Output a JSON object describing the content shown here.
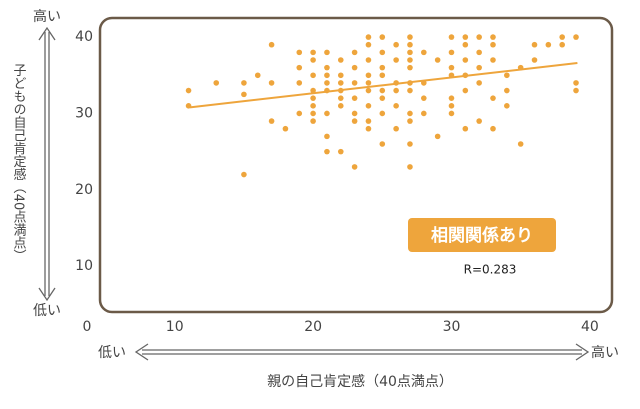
{
  "chart_data": {
    "type": "scatter",
    "y_label": "子どもの自己肯定感（40点満点）",
    "x_label": "親の自己肯定感（40点満点）",
    "y_high": "高い",
    "y_low": "低い",
    "x_low": "低い",
    "x_high": "高い",
    "origin_label": "0",
    "badge": "相関関係あり",
    "annotation": "R=0.283",
    "color": "#eea53c",
    "trend_color": "#eea53c",
    "xlim": [
      4.6,
      41.6
    ],
    "ylim": [
      4,
      42.5
    ],
    "xticks": [
      10,
      20,
      30,
      40
    ],
    "yticks": [
      10,
      20,
      30,
      40
    ],
    "trend": {
      "x": [
        11.1,
        39.1
      ],
      "y": [
        30.8,
        36.6
      ]
    },
    "x": [
      11,
      11,
      13,
      15,
      15,
      15,
      16,
      17,
      17,
      17,
      18,
      19,
      19,
      19,
      19,
      20,
      20,
      20,
      20,
      20,
      20,
      20,
      20,
      21,
      21,
      21,
      21,
      21,
      21,
      21,
      21,
      22,
      22,
      22,
      22,
      22,
      22,
      22,
      23,
      23,
      23,
      23,
      23,
      23,
      23,
      24,
      24,
      24,
      24,
      24,
      24,
      24,
      24,
      24,
      25,
      25,
      25,
      25,
      25,
      25,
      25,
      25,
      26,
      26,
      26,
      26,
      26,
      26,
      27,
      27,
      27,
      27,
      27,
      27,
      27,
      27,
      27,
      27,
      27,
      28,
      28,
      28,
      28,
      29,
      29,
      30,
      30,
      30,
      30,
      30,
      30,
      30,
      31,
      31,
      31,
      31,
      31,
      31,
      32,
      32,
      32,
      32,
      32,
      33,
      33,
      33,
      33,
      33,
      34,
      34,
      34,
      35,
      35,
      36,
      36,
      37,
      38,
      38,
      39,
      39,
      39
    ],
    "y": [
      33,
      31,
      34,
      22,
      32.5,
      34,
      35,
      39,
      34,
      29,
      28,
      38,
      36,
      34,
      30,
      38,
      37,
      35,
      33,
      32,
      31,
      30,
      29,
      38,
      36,
      35,
      34,
      33,
      30,
      25,
      27,
      37,
      35,
      34,
      33,
      32,
      31,
      25,
      38,
      36,
      34,
      32,
      30,
      29,
      23,
      40,
      39,
      37,
      35,
      34,
      33,
      31,
      29,
      28,
      40,
      38,
      36,
      35,
      33,
      32,
      30,
      26,
      39,
      37,
      34,
      33,
      31,
      28,
      40,
      39,
      38,
      37,
      36,
      34,
      33,
      30,
      29,
      26,
      23,
      38,
      34,
      32,
      30,
      37,
      27,
      40,
      38,
      36,
      35,
      32,
      31,
      30,
      40,
      39,
      37,
      35,
      33,
      28,
      40,
      38,
      36,
      34,
      29,
      40,
      39,
      37,
      32,
      28,
      35,
      33,
      31,
      36,
      26,
      39,
      37,
      39,
      39,
      40,
      40,
      34,
      33
    ]
  }
}
